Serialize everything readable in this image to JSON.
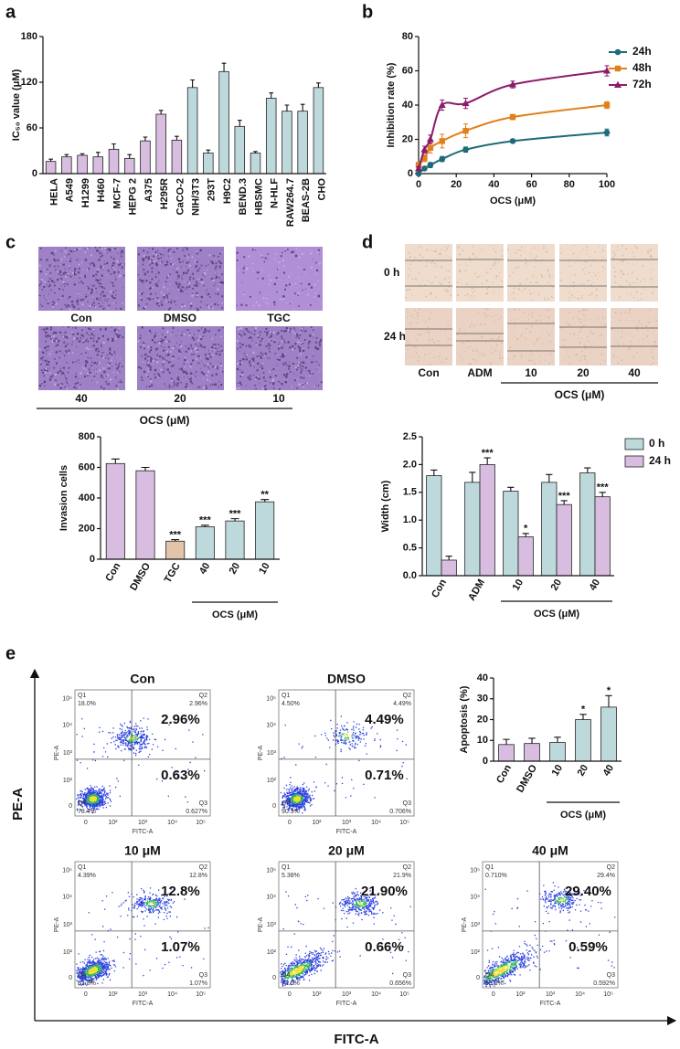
{
  "panel_labels": [
    "a",
    "b",
    "c",
    "d",
    "e"
  ],
  "chart_data": [
    {
      "type": "bar",
      "y_label": "IC₅₀ value (μM)",
      "categories": [
        "HELA",
        "A549",
        "H1299",
        "H460",
        "MCF-7",
        "HEPG 2",
        "A375",
        "H295R",
        "CaCO-2",
        "NIH/3T3",
        "293T",
        "H9C2",
        "BEND.3",
        "HBSMC",
        "N-HLF",
        "RAW264.7",
        "BEAS-2B",
        "CHO"
      ],
      "values": [
        16,
        22,
        24,
        22,
        32,
        20,
        43,
        78,
        44,
        113,
        27,
        134,
        62,
        27,
        99,
        82,
        82,
        113
      ],
      "errors": [
        3,
        3,
        2,
        6,
        7,
        5,
        5,
        5,
        5,
        10,
        4,
        11,
        8,
        2,
        7,
        8,
        9,
        6
      ],
      "colors": [
        "#d8bde0",
        "#d8bde0",
        "#d8bde0",
        "#d8bde0",
        "#d8bde0",
        "#d8bde0",
        "#d8bde0",
        "#d8bde0",
        "#d8bde0",
        "#bed9db",
        "#bed9db",
        "#bed9db",
        "#bed9db",
        "#bed9db",
        "#bed9db",
        "#bed9db",
        "#bed9db",
        "#bed9db"
      ],
      "ylim": [
        0,
        180
      ],
      "yticks": [
        0,
        60,
        120,
        180
      ]
    },
    {
      "type": "line",
      "x_label": "OCS (μM)",
      "y_label": "Inhibition rate (%)",
      "x": [
        0,
        3.125,
        6.25,
        12.5,
        25,
        50,
        100
      ],
      "series": [
        {
          "name": "24h",
          "color": "#1d6b78",
          "marker": "circle",
          "values": [
            0,
            3,
            5,
            8.5,
            14,
            19,
            24
          ],
          "errors": [
            1,
            1,
            1.5,
            1.5,
            1.5,
            1,
            2
          ]
        },
        {
          "name": "48h",
          "color": "#e0801c",
          "marker": "square",
          "values": [
            5,
            9,
            15,
            19,
            25,
            33,
            40
          ],
          "errors": [
            1.5,
            2,
            3,
            4,
            4,
            1.5,
            2
          ]
        },
        {
          "name": "72h",
          "color": "#8c1b6b",
          "marker": "triangle",
          "values": [
            3,
            14,
            20,
            40,
            41,
            52,
            60
          ],
          "errors": [
            1,
            2,
            2.5,
            3,
            3,
            2,
            3
          ]
        }
      ],
      "xlim": [
        0,
        100
      ],
      "xticks": [
        0,
        20,
        40,
        60,
        80,
        100
      ],
      "ylim": [
        0,
        80
      ],
      "yticks": [
        0,
        20,
        40,
        60,
        80
      ],
      "legend": "right"
    },
    {
      "type": "bar",
      "y_label": "Invasion cells",
      "group_label": "OCS (μM)",
      "categories": [
        "Con",
        "DMSO",
        "TGC",
        "40",
        "20",
        "10"
      ],
      "values": [
        625,
        578,
        118,
        212,
        250,
        375
      ],
      "errors": [
        30,
        22,
        10,
        10,
        15,
        15
      ],
      "annotations": [
        null,
        null,
        "***",
        "***",
        "***",
        "**"
      ],
      "colors": [
        "#d8bde0",
        "#d8bde0",
        "#e2c4aa",
        "#bed9db",
        "#bed9db",
        "#bed9db"
      ],
      "ylim": [
        0,
        800
      ],
      "yticks": [
        0,
        200,
        400,
        600,
        800
      ]
    },
    {
      "type": "bar",
      "y_label": "Width (cm)",
      "group_label": "OCS (μM)",
      "categories": [
        "Con",
        "ADM",
        "10",
        "20",
        "40"
      ],
      "series": [
        {
          "name": "0 h",
          "color": "#bed9db",
          "values": [
            1.8,
            1.68,
            1.52,
            1.68,
            1.85
          ],
          "errors": [
            0.1,
            0.18,
            0.07,
            0.14,
            0.09
          ]
        },
        {
          "name": "24 h",
          "color": "#d8bde0",
          "values": [
            0.28,
            2.0,
            0.7,
            1.28,
            1.42
          ],
          "errors": [
            0.07,
            0.12,
            0.06,
            0.07,
            0.08
          ],
          "annotations": [
            null,
            "***",
            "*",
            "***",
            "***"
          ]
        }
      ],
      "ylim": [
        0,
        2.5
      ],
      "yticks": [
        {
          "value": 0,
          "label": "0.0"
        },
        0.5,
        {
          "value": 1,
          "label": "1.0"
        },
        1.5,
        {
          "value": 2,
          "label": "2.0"
        },
        2.5
      ],
      "legend": "right"
    },
    {
      "type": "bar",
      "y_label": "Apoptosis (%)",
      "group_label": "OCS (μM)",
      "categories": [
        "Con",
        "DMSO",
        "10",
        "20",
        "40"
      ],
      "values": [
        8,
        8.5,
        9,
        20,
        26
      ],
      "errors": [
        2.5,
        2.5,
        2.5,
        2.5,
        5.5
      ],
      "annotations": [
        null,
        null,
        null,
        "*",
        "*"
      ],
      "colors": [
        "#d8bde0",
        "#d8bde0",
        "#bed9db",
        "#bed9db",
        "#bed9db"
      ],
      "ylim": [
        0,
        40
      ],
      "yticks": [
        0,
        10,
        20,
        30,
        40
      ]
    }
  ],
  "images_c": {
    "labels": [
      "Con",
      "DMSO",
      "TGC",
      "40",
      "20",
      "10"
    ],
    "group_label": "OCS (μM)"
  },
  "images_d": {
    "rows": [
      "0 h",
      "24 h"
    ],
    "labels": [
      "Con",
      "ADM",
      "10",
      "20",
      "40"
    ],
    "group_label": "OCS  (μM)"
  },
  "flow_e": {
    "axis_x": "FITC-A",
    "axis_y": "PE-A",
    "x_ticks": [
      "0",
      "10²",
      "10³",
      "10⁴",
      "10⁵"
    ],
    "y_ticks": [
      "0",
      "10²",
      "10³",
      "10⁴",
      "10⁵"
    ],
    "quadrants": [
      "Q1",
      "Q2",
      "Q3",
      "Q4"
    ],
    "plots": [
      {
        "title": "Con",
        "q1": "18.0%",
        "q2": "2.96%",
        "q3": "0.627%",
        "q4": "78.4%",
        "upper": "2.96%",
        "lower": "0.63%"
      },
      {
        "title": "DMSO",
        "q1": "4.50%",
        "q2": "4.49%",
        "q3": "0.706%",
        "q4": "90.3%",
        "upper": "4.49%",
        "lower": "0.71%"
      },
      {
        "title": "10 μM",
        "q1": "4.39%",
        "q2": "12.8%",
        "q3": "1.07%",
        "q4": "81.8%",
        "upper": "12.8%",
        "lower": "1.07%"
      },
      {
        "title": "20 μM",
        "q1": "5.38%",
        "q2": "21.9%",
        "q3": "0.656%",
        "q4": "72.0%",
        "upper": "21.90%",
        "lower": "0.66%"
      },
      {
        "title": "40 μM",
        "q1": "0.710%",
        "q2": "29.4%",
        "q3": "0.592%",
        "q4": "69.3%",
        "upper": "29.40%",
        "lower": "0.59%"
      }
    ]
  }
}
